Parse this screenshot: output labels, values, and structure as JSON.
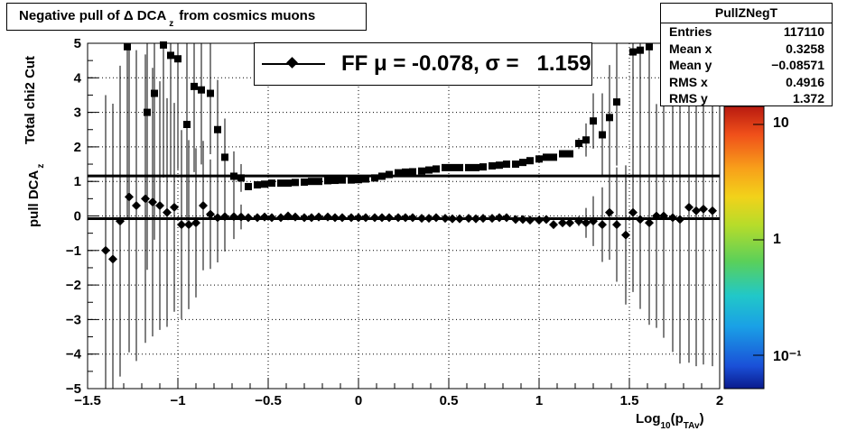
{
  "title": "Negative pull of Δ DCA",
  "title_sub": "z",
  "title_suffix": "from cosmics muons",
  "stats": {
    "name": "PullZNegT",
    "rows": [
      {
        "label": "Entries",
        "value": "117110"
      },
      {
        "label": "Mean x",
        "value": "0.3258"
      },
      {
        "label": "Mean y",
        "value": "−0.08571"
      },
      {
        "label": "RMS x",
        "value": "0.4916"
      },
      {
        "label": "RMS y",
        "value": "1.372"
      }
    ]
  },
  "legend": {
    "text": "FF μ = -0.078, σ =   1.159"
  },
  "ylabel_top": "Total chi2 Cut",
  "ylabel_main": "pull DCA",
  "ylabel_sub": "z",
  "xlabel_main": "Log",
  "xlabel_sub1": "10",
  "xlabel_mid": "(p",
  "xlabel_sub2": "TAv",
  "xlabel_end": ")",
  "colorbar": {
    "ticks": [
      "10",
      "1",
      "10⁻¹"
    ]
  },
  "chart_data": {
    "type": "heatmap",
    "xlim": [
      -1.5,
      2
    ],
    "ylim": [
      -5,
      5
    ],
    "xticks": [
      "−1.5",
      "−1",
      "−0.5",
      "0",
      "0.5",
      "1",
      "1.5",
      "2"
    ],
    "yticks": [
      "−5",
      "−4",
      "−3",
      "−2",
      "−1",
      "0",
      "1",
      "2",
      "3",
      "4",
      "5"
    ],
    "grid": true,
    "zscale": "log",
    "zrange": [
      0.05,
      20
    ],
    "mean_fit": -0.078,
    "sigma_fit": 1.159,
    "sigma_points": {
      "x": [
        -1.4,
        -1.33,
        -1.28,
        -1.22,
        -1.17,
        -1.13,
        -1.08,
        -1.04,
        -1.0,
        -0.95,
        -0.91,
        -0.87,
        -0.82,
        -0.78,
        -0.74,
        -0.69,
        -0.65,
        -0.61,
        -0.56,
        -0.52,
        -0.48,
        -0.43,
        -0.39,
        -0.35,
        -0.3,
        -0.26,
        -0.22,
        -0.17,
        -0.13,
        -0.09,
        -0.04,
        0.0,
        0.04,
        0.09,
        0.13,
        0.17,
        0.22,
        0.26,
        0.3,
        0.35,
        0.39,
        0.43,
        0.48,
        0.52,
        0.56,
        0.61,
        0.65,
        0.69,
        0.74,
        0.78,
        0.82,
        0.87,
        0.91,
        0.95,
        1.0,
        1.04,
        1.08,
        1.13,
        1.17,
        1.22,
        1.26,
        1.3,
        1.35,
        1.39,
        1.43,
        1.48,
        1.52,
        1.56,
        1.61,
        1.65,
        1.69,
        1.74,
        1.78,
        1.83,
        1.87,
        1.91,
        1.96
      ],
      "y": [
        null,
        null,
        4.9,
        null,
        3.0,
        3.55,
        4.95,
        4.65,
        4.55,
        2.65,
        3.75,
        3.65,
        3.55,
        2.5,
        1.7,
        1.15,
        1.1,
        0.85,
        0.9,
        0.92,
        0.95,
        0.95,
        0.95,
        0.97,
        0.98,
        1.0,
        1.0,
        1.02,
        1.03,
        1.04,
        1.04,
        1.05,
        1.07,
        1.1,
        1.15,
        1.2,
        1.25,
        1.27,
        1.28,
        1.3,
        1.33,
        1.36,
        1.4,
        1.4,
        1.4,
        1.4,
        1.4,
        1.42,
        1.45,
        1.47,
        1.5,
        1.5,
        1.55,
        1.6,
        1.65,
        1.7,
        1.7,
        1.8,
        1.8,
        2.1,
        2.2,
        2.75,
        2.35,
        2.85,
        3.3,
        null,
        4.75,
        4.8,
        4.9,
        null,
        null,
        null,
        null,
        null,
        null,
        null,
        null
      ]
    },
    "mean_points": {
      "x": [
        -1.4,
        -1.36,
        -1.32,
        -1.27,
        -1.23,
        -1.18,
        -1.14,
        -1.1,
        -1.06,
        -1.02,
        -0.98,
        -0.94,
        -0.9,
        -0.86,
        -0.82,
        -0.78,
        -0.74,
        -0.69,
        -0.65,
        -0.61,
        -0.56,
        -0.52,
        -0.48,
        -0.43,
        -0.39,
        -0.35,
        -0.3,
        -0.26,
        -0.22,
        -0.17,
        -0.13,
        -0.09,
        -0.04,
        0.0,
        0.04,
        0.09,
        0.13,
        0.17,
        0.22,
        0.26,
        0.3,
        0.35,
        0.39,
        0.43,
        0.48,
        0.52,
        0.56,
        0.61,
        0.65,
        0.69,
        0.74,
        0.78,
        0.82,
        0.87,
        0.91,
        0.95,
        1.0,
        1.04,
        1.08,
        1.13,
        1.17,
        1.22,
        1.26,
        1.3,
        1.35,
        1.39,
        1.43,
        1.48,
        1.52,
        1.56,
        1.61,
        1.65,
        1.69,
        1.74,
        1.78,
        1.83,
        1.87,
        1.91,
        1.96
      ],
      "y": [
        -1.0,
        -1.25,
        -0.15,
        0.55,
        0.3,
        0.5,
        0.4,
        0.3,
        0.1,
        0.25,
        -0.25,
        -0.25,
        -0.2,
        0.3,
        0.05,
        -0.05,
        -0.02,
        -0.02,
        -0.03,
        -0.05,
        -0.05,
        -0.03,
        -0.05,
        -0.05,
        0.0,
        -0.03,
        -0.05,
        -0.05,
        -0.03,
        -0.03,
        -0.05,
        -0.05,
        -0.05,
        -0.05,
        -0.05,
        -0.05,
        -0.05,
        -0.05,
        -0.05,
        -0.05,
        -0.05,
        -0.07,
        -0.07,
        -0.05,
        -0.07,
        -0.08,
        -0.08,
        -0.07,
        -0.08,
        -0.07,
        -0.07,
        -0.05,
        -0.05,
        -0.1,
        -0.1,
        -0.12,
        -0.12,
        -0.1,
        -0.25,
        -0.2,
        -0.2,
        -0.15,
        -0.2,
        -0.15,
        -0.25,
        0.1,
        -0.25,
        -0.55,
        0.1,
        -0.1,
        -0.2,
        0.0,
        0.0,
        -0.05,
        -0.1,
        0.25,
        0.15,
        0.2,
        0.15
      ]
    }
  }
}
